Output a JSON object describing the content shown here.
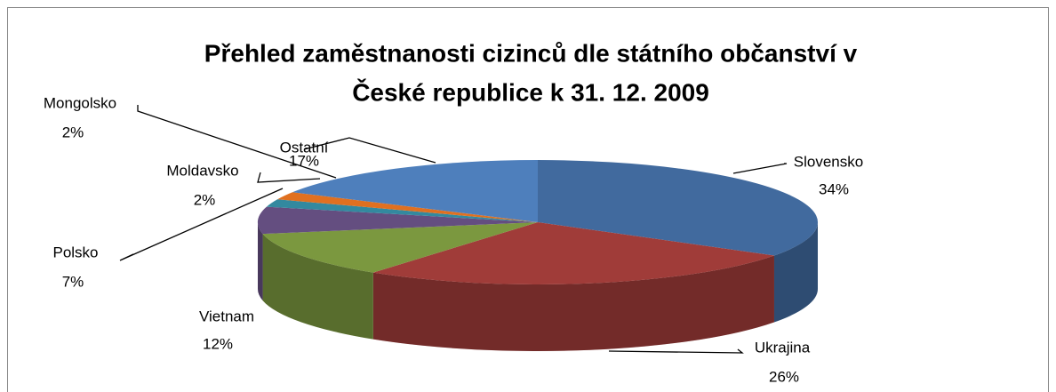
{
  "chart_data": {
    "type": "pie3d",
    "title": [
      "Přehled zaměstnanosti cizinců dle státního občanství v",
      "České republice k 31. 12. 2009"
    ],
    "categories": [
      "Slovensko",
      "Ukrajina",
      "Vietnam",
      "Polsko",
      "Moldavsko",
      "Mongolsko",
      "Ostatní"
    ],
    "values": [
      34,
      26,
      12,
      7,
      2,
      2,
      17
    ],
    "value_labels": [
      "34%",
      "26%",
      "12%",
      "7%",
      "2%",
      "2%",
      "17%"
    ],
    "colors": [
      "#416a9e",
      "#a03c39",
      "#7b983f",
      "#644e80",
      "#33899f",
      "#e07020",
      "#4e7fbc"
    ]
  }
}
